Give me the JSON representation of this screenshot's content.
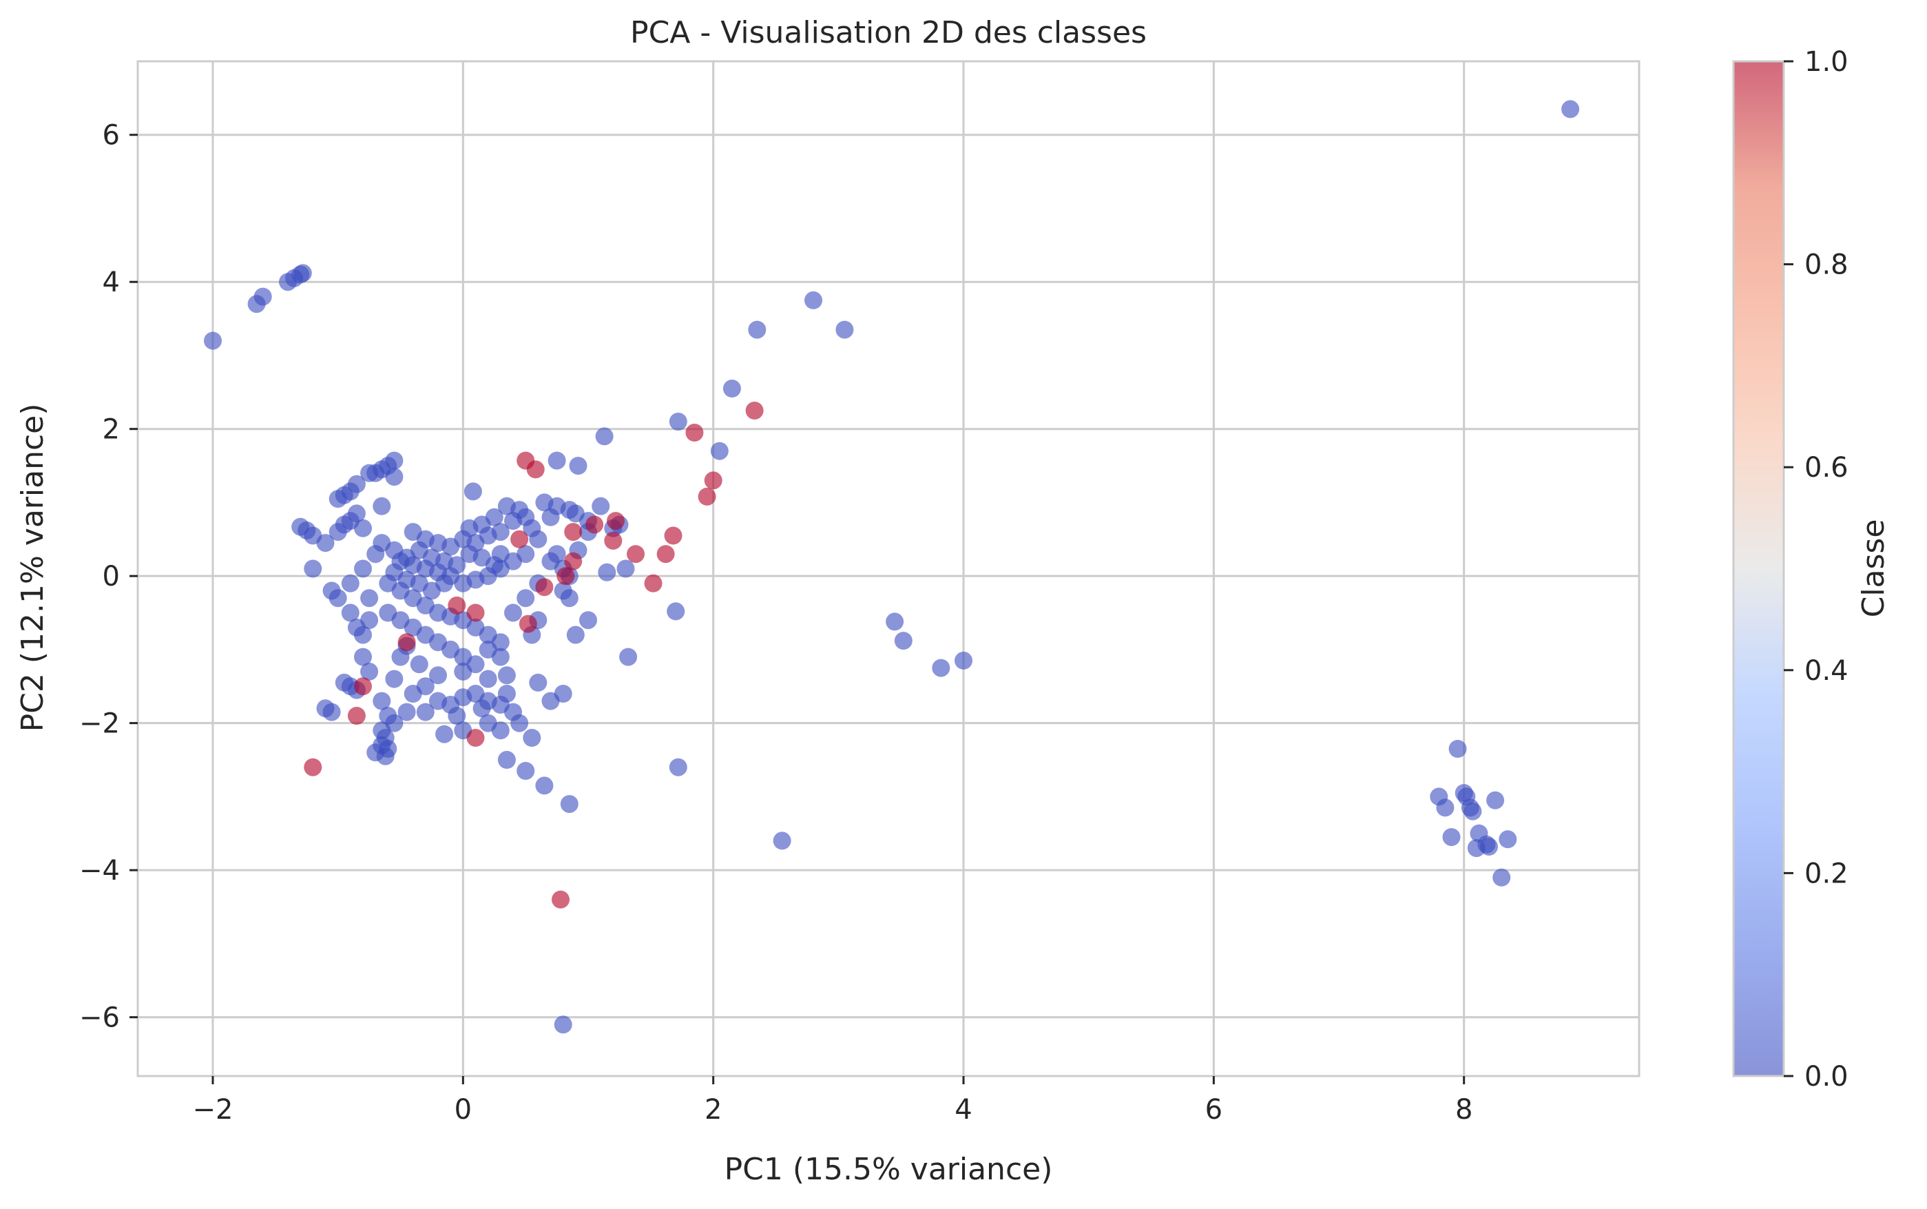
{
  "chart_data": {
    "type": "scatter",
    "title": "PCA - Visualisation 2D des classes",
    "xlabel": "PC1 (15.5% variance)",
    "ylabel": "PC2 (12.1% variance)",
    "xlim": [
      -2.6,
      9.4
    ],
    "ylim": [
      -6.8,
      7.0
    ],
    "xticks": [
      -2,
      0,
      2,
      4,
      6,
      8
    ],
    "yticks": [
      -6,
      -4,
      -2,
      0,
      2,
      4,
      6
    ],
    "xtick_labels": [
      "−2",
      "0",
      "2",
      "4",
      "6",
      "8"
    ],
    "ytick_labels": [
      "−6",
      "−4",
      "−2",
      "0",
      "2",
      "4",
      "6"
    ],
    "grid": true,
    "point_alpha": 0.6,
    "colormap": "coolwarm",
    "colors": {
      "class0": "#3b4cc0",
      "class1": "#b40426"
    },
    "colorbar": {
      "label": "Classe",
      "range": [
        0.0,
        1.0
      ],
      "ticks": [
        0.0,
        0.2,
        0.4,
        0.6,
        0.8,
        1.0
      ],
      "tick_labels": [
        "0.0",
        "0.2",
        "0.4",
        "0.6",
        "0.8",
        "1.0"
      ]
    },
    "series": [
      {
        "class": 0,
        "points": [
          [
            -2.0,
            3.2
          ],
          [
            -1.65,
            3.7
          ],
          [
            -1.6,
            3.8
          ],
          [
            -1.4,
            4.0
          ],
          [
            -1.35,
            4.05
          ],
          [
            -1.3,
            4.1
          ],
          [
            -1.28,
            4.12
          ],
          [
            8.85,
            6.35
          ],
          [
            2.8,
            3.75
          ],
          [
            2.35,
            3.35
          ],
          [
            3.05,
            3.35
          ],
          [
            2.15,
            2.55
          ],
          [
            1.72,
            2.1
          ],
          [
            2.05,
            1.7
          ],
          [
            1.13,
            1.9
          ],
          [
            0.75,
            1.57
          ],
          [
            0.92,
            1.5
          ],
          [
            0.08,
            1.15
          ],
          [
            -0.55,
            1.57
          ],
          [
            -0.6,
            1.5
          ],
          [
            -0.65,
            1.45
          ],
          [
            -0.7,
            1.4
          ],
          [
            -0.55,
            1.35
          ],
          [
            -0.75,
            1.4
          ],
          [
            -0.85,
            1.25
          ],
          [
            -0.95,
            1.1
          ],
          [
            -1.0,
            1.05
          ],
          [
            -0.9,
            1.15
          ],
          [
            -0.65,
            0.95
          ],
          [
            -1.3,
            0.67
          ],
          [
            -1.25,
            0.62
          ],
          [
            -1.2,
            0.55
          ],
          [
            -1.1,
            0.45
          ],
          [
            -1.0,
            0.6
          ],
          [
            -0.95,
            0.7
          ],
          [
            -0.9,
            0.75
          ],
          [
            -0.85,
            0.85
          ],
          [
            -0.8,
            0.65
          ],
          [
            -1.2,
            0.1
          ],
          [
            -1.05,
            -0.2
          ],
          [
            -1.0,
            -0.3
          ],
          [
            -0.9,
            -0.5
          ],
          [
            -0.85,
            -0.7
          ],
          [
            -0.8,
            -0.8
          ],
          [
            -0.75,
            -0.6
          ],
          [
            -0.4,
            0.6
          ],
          [
            -0.3,
            0.5
          ],
          [
            -0.2,
            0.45
          ],
          [
            -0.1,
            0.4
          ],
          [
            0.0,
            0.5
          ],
          [
            0.1,
            0.45
          ],
          [
            0.2,
            0.55
          ],
          [
            0.3,
            0.6
          ],
          [
            0.4,
            0.75
          ],
          [
            0.5,
            0.8
          ],
          [
            -0.5,
            0.2
          ],
          [
            -0.4,
            0.15
          ],
          [
            -0.3,
            0.1
          ],
          [
            -0.2,
            0.05
          ],
          [
            -0.1,
            0.0
          ],
          [
            0.0,
            -0.1
          ],
          [
            0.1,
            -0.05
          ],
          [
            0.2,
            0.0
          ],
          [
            0.3,
            0.1
          ],
          [
            0.4,
            0.2
          ],
          [
            -0.6,
            -0.1
          ],
          [
            -0.5,
            -0.2
          ],
          [
            -0.4,
            -0.3
          ],
          [
            -0.3,
            -0.4
          ],
          [
            -0.2,
            -0.5
          ],
          [
            -0.1,
            -0.55
          ],
          [
            0.0,
            -0.6
          ],
          [
            0.1,
            -0.7
          ],
          [
            0.2,
            -0.8
          ],
          [
            0.3,
            -0.9
          ],
          [
            -0.6,
            -0.5
          ],
          [
            -0.5,
            -0.6
          ],
          [
            -0.4,
            -0.7
          ],
          [
            -0.3,
            -0.8
          ],
          [
            -0.2,
            -0.9
          ],
          [
            -0.1,
            -1.0
          ],
          [
            0.0,
            -1.1
          ],
          [
            0.1,
            -1.2
          ],
          [
            0.2,
            -1.0
          ],
          [
            0.3,
            -1.1
          ],
          [
            -0.7,
            0.3
          ],
          [
            -0.8,
            0.1
          ],
          [
            -0.9,
            -0.1
          ],
          [
            -0.75,
            -0.3
          ],
          [
            -0.65,
            0.45
          ],
          [
            -0.55,
            0.35
          ],
          [
            -0.45,
            0.25
          ],
          [
            -0.35,
            0.35
          ],
          [
            -0.25,
            0.25
          ],
          [
            -0.15,
            0.2
          ],
          [
            0.5,
            0.3
          ],
          [
            0.6,
            0.5
          ],
          [
            0.7,
            0.2
          ],
          [
            0.8,
            0.1
          ],
          [
            0.85,
            0.0
          ],
          [
            0.6,
            -0.1
          ],
          [
            0.5,
            -0.3
          ],
          [
            0.4,
            -0.5
          ],
          [
            0.6,
            -0.6
          ],
          [
            0.55,
            -0.8
          ],
          [
            0.3,
            0.3
          ],
          [
            0.25,
            0.15
          ],
          [
            0.15,
            0.25
          ],
          [
            0.05,
            0.3
          ],
          [
            -0.05,
            0.15
          ],
          [
            -0.15,
            -0.1
          ],
          [
            -0.25,
            -0.2
          ],
          [
            -0.35,
            -0.1
          ],
          [
            -0.45,
            -0.05
          ],
          [
            -0.55,
            0.05
          ],
          [
            0.9,
            0.85
          ],
          [
            1.0,
            0.75
          ],
          [
            1.1,
            0.95
          ],
          [
            1.2,
            0.65
          ],
          [
            1.25,
            0.7
          ],
          [
            1.0,
            0.6
          ],
          [
            0.85,
            0.9
          ],
          [
            0.7,
            0.8
          ],
          [
            0.65,
            1.0
          ],
          [
            0.75,
            0.95
          ],
          [
            -0.95,
            -1.45
          ],
          [
            -0.9,
            -1.5
          ],
          [
            -0.85,
            -1.55
          ],
          [
            -1.1,
            -1.8
          ],
          [
            -1.05,
            -1.85
          ],
          [
            -0.65,
            -1.7
          ],
          [
            -0.6,
            -1.9
          ],
          [
            -0.55,
            -2.0
          ],
          [
            -0.4,
            -1.6
          ],
          [
            -0.3,
            -1.5
          ],
          [
            -0.65,
            -2.1
          ],
          [
            -0.62,
            -2.2
          ],
          [
            -0.65,
            -2.3
          ],
          [
            -0.6,
            -2.35
          ],
          [
            -0.7,
            -2.4
          ],
          [
            -0.62,
            -2.45
          ],
          [
            -0.8,
            -1.1
          ],
          [
            -0.75,
            -1.3
          ],
          [
            -0.55,
            -1.4
          ],
          [
            -0.45,
            -1.85
          ],
          [
            -0.2,
            -1.7
          ],
          [
            -0.1,
            -1.75
          ],
          [
            0.0,
            -1.65
          ],
          [
            0.1,
            -1.6
          ],
          [
            0.2,
            -1.7
          ],
          [
            0.3,
            -1.75
          ],
          [
            0.4,
            -1.85
          ],
          [
            0.35,
            -1.6
          ],
          [
            0.15,
            -1.8
          ],
          [
            -0.05,
            -1.9
          ],
          [
            -0.3,
            -1.85
          ],
          [
            -0.15,
            -2.15
          ],
          [
            0.0,
            -2.1
          ],
          [
            0.2,
            -2.0
          ],
          [
            0.3,
            -2.1
          ],
          [
            0.45,
            -2.0
          ],
          [
            0.55,
            -2.2
          ],
          [
            0.35,
            -2.5
          ],
          [
            0.5,
            -2.65
          ],
          [
            0.65,
            -2.85
          ],
          [
            0.7,
            -1.7
          ],
          [
            0.8,
            -1.6
          ],
          [
            0.6,
            -1.45
          ],
          [
            0.35,
            -1.35
          ],
          [
            0.2,
            -1.4
          ],
          [
            0.0,
            -1.3
          ],
          [
            -0.2,
            -1.35
          ],
          [
            -0.35,
            -1.2
          ],
          [
            -0.5,
            -1.1
          ],
          [
            -0.45,
            -0.95
          ],
          [
            0.8,
            -0.2
          ],
          [
            0.85,
            -0.3
          ],
          [
            0.9,
            -0.8
          ],
          [
            1.0,
            -0.6
          ],
          [
            0.85,
            -3.1
          ],
          [
            0.8,
            -6.1
          ],
          [
            1.72,
            -2.6
          ],
          [
            2.55,
            -3.6
          ],
          [
            1.7,
            -0.48
          ],
          [
            1.32,
            -1.1
          ],
          [
            3.45,
            -0.62
          ],
          [
            3.52,
            -0.88
          ],
          [
            3.82,
            -1.25
          ],
          [
            4.0,
            -1.15
          ],
          [
            7.95,
            -2.35
          ],
          [
            7.8,
            -3.0
          ],
          [
            7.85,
            -3.15
          ],
          [
            7.9,
            -3.55
          ],
          [
            8.0,
            -2.95
          ],
          [
            8.02,
            -3.0
          ],
          [
            8.05,
            -3.15
          ],
          [
            8.07,
            -3.2
          ],
          [
            8.1,
            -3.7
          ],
          [
            8.12,
            -3.5
          ],
          [
            8.18,
            -3.65
          ],
          [
            8.2,
            -3.68
          ],
          [
            8.25,
            -3.05
          ],
          [
            8.3,
            -4.1
          ],
          [
            8.35,
            -3.58
          ],
          [
            1.3,
            0.1
          ],
          [
            1.15,
            0.05
          ],
          [
            0.92,
            0.35
          ],
          [
            0.75,
            0.3
          ],
          [
            0.55,
            0.65
          ],
          [
            0.45,
            0.9
          ],
          [
            0.35,
            0.95
          ],
          [
            0.25,
            0.8
          ],
          [
            0.15,
            0.7
          ],
          [
            0.05,
            0.65
          ]
        ]
      },
      {
        "class": 1,
        "points": [
          [
            2.33,
            2.25
          ],
          [
            1.85,
            1.95
          ],
          [
            2.0,
            1.3
          ],
          [
            1.95,
            1.08
          ],
          [
            1.68,
            0.55
          ],
          [
            1.52,
            -0.1
          ],
          [
            1.38,
            0.3
          ],
          [
            1.22,
            0.75
          ],
          [
            1.2,
            0.48
          ],
          [
            1.05,
            0.7
          ],
          [
            0.88,
            0.6
          ],
          [
            0.82,
            0.0
          ],
          [
            0.88,
            0.2
          ],
          [
            0.65,
            -0.15
          ],
          [
            0.52,
            -0.65
          ],
          [
            0.5,
            1.57
          ],
          [
            0.58,
            1.45
          ],
          [
            0.45,
            0.5
          ],
          [
            -0.45,
            -0.9
          ],
          [
            -0.05,
            -0.4
          ],
          [
            0.1,
            -0.5
          ],
          [
            -0.8,
            -1.5
          ],
          [
            -0.85,
            -1.9
          ],
          [
            -1.2,
            -2.6
          ],
          [
            0.78,
            -4.4
          ],
          [
            0.1,
            -2.2
          ],
          [
            1.62,
            0.3
          ]
        ]
      }
    ]
  }
}
